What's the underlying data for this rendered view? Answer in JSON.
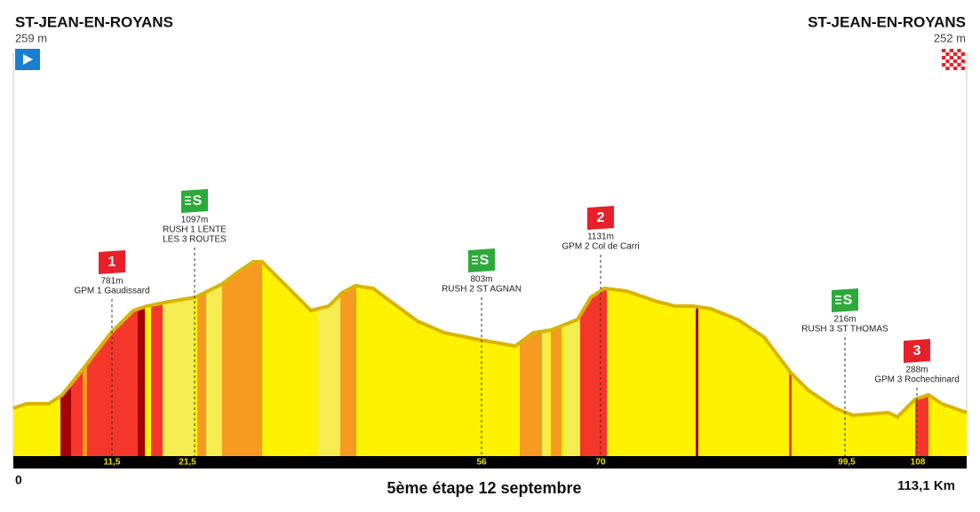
{
  "title": "5ème étape 12 septembre",
  "start": {
    "name": "ST-JEAN-EN-ROYANS",
    "altitude": "259 m"
  },
  "finish": {
    "name": "ST-JEAN-EN-ROYANS",
    "altitude": "252 m"
  },
  "axis": {
    "start": "0",
    "end": "113,1 Km"
  },
  "km_marks": [
    "11,5",
    "21,5",
    "56",
    "70",
    "99,5",
    "108"
  ],
  "markers": [
    {
      "icon": "1",
      "kind": "climb",
      "altitude": "781m",
      "label_lines": [
        "GPM 1 Gaudissard"
      ]
    },
    {
      "icon": "S",
      "kind": "sprint",
      "altitude": "1097m",
      "label_lines": [
        "RUSH 1 LENTE",
        "LES 3 ROUTES"
      ]
    },
    {
      "icon": "S",
      "kind": "sprint",
      "altitude": "803m",
      "label_lines": [
        "RUSH 2 ST AGNAN"
      ]
    },
    {
      "icon": "2",
      "kind": "climb",
      "altitude": "1131m",
      "label_lines": [
        "GPM 2 Col de Carri"
      ]
    },
    {
      "icon": "S",
      "kind": "sprint",
      "altitude": "216m",
      "label_lines": [
        "RUSH 3 ST THOMAS"
      ]
    },
    {
      "icon": "3",
      "kind": "climb",
      "altitude": "288m",
      "label_lines": [
        "GPM 3 Rochechinard"
      ]
    }
  ]
}
